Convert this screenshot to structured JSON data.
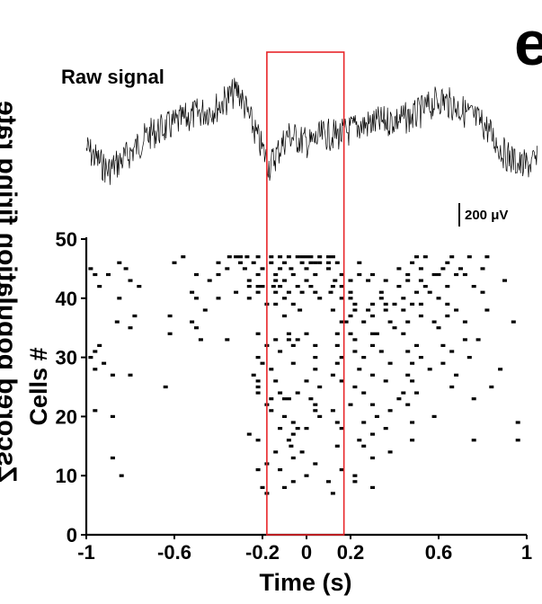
{
  "panel_letter": "e",
  "side_label": "Zscored population firing rate",
  "chart_data": {
    "type": "scatter",
    "subtype": "raster",
    "raw_signal_label": "Raw signal",
    "scale_bar_label": "200 μV",
    "xlabel": "Time (s)",
    "ylabel": "Cells #",
    "xlim": [
      -1,
      1
    ],
    "ylim": [
      0,
      50
    ],
    "x_ticks": [
      -1,
      -0.6,
      -0.2,
      0,
      0.2,
      0.6,
      1
    ],
    "x_tick_labels": [
      "-1",
      "-0.6",
      "-0.2",
      "0",
      "0.2",
      "0.6",
      "1"
    ],
    "y_ticks": [
      0,
      10,
      20,
      30,
      40,
      50
    ],
    "y_tick_labels": [
      "0",
      "10",
      "20",
      "30",
      "40",
      "50"
    ],
    "highlight_window": [
      -0.18,
      0.17
    ],
    "highlight_color": "#e8262a",
    "spike_color": "#000000",
    "spikes": [
      [
        -0.02,
        47
      ],
      [
        -0.04,
        47
      ],
      [
        0.06,
        47
      ],
      [
        0.1,
        47
      ],
      [
        -0.27,
        47
      ],
      [
        -0.22,
        47
      ],
      [
        -0.3,
        47
      ],
      [
        -0.16,
        47
      ],
      [
        -0.12,
        47
      ],
      [
        0.02,
        47
      ],
      [
        0.12,
        47
      ],
      [
        0.0,
        47
      ],
      [
        0.5,
        47
      ],
      [
        -0.56,
        47
      ],
      [
        -0.08,
        47
      ],
      [
        -0.32,
        47
      ],
      [
        0.54,
        47
      ],
      [
        0.66,
        47
      ],
      [
        0.74,
        47
      ],
      [
        -0.35,
        47
      ],
      [
        0.82,
        47
      ],
      [
        -0.02,
        46
      ],
      [
        0.06,
        46
      ],
      [
        -0.24,
        46
      ],
      [
        -0.16,
        46
      ],
      [
        0.14,
        46
      ],
      [
        -0.3,
        46
      ],
      [
        -0.4,
        46
      ],
      [
        -0.85,
        46
      ],
      [
        0.02,
        46
      ],
      [
        0.1,
        46
      ],
      [
        -0.6,
        46
      ],
      [
        -0.1,
        46
      ],
      [
        0.04,
        46
      ],
      [
        0.64,
        46
      ],
      [
        0.48,
        46
      ],
      [
        0.24,
        46
      ],
      [
        -0.82,
        45
      ],
      [
        -0.12,
        45
      ],
      [
        -0.28,
        45
      ],
      [
        0.0,
        45
      ],
      [
        0.1,
        45
      ],
      [
        -0.36,
        45
      ],
      [
        0.42,
        45
      ],
      [
        -0.98,
        45
      ],
      [
        0.62,
        45
      ],
      [
        0.8,
        45
      ],
      [
        -0.2,
        45
      ],
      [
        0.52,
        45
      ],
      [
        0.7,
        45
      ],
      [
        -0.07,
        45
      ],
      [
        -0.9,
        44
      ],
      [
        -0.22,
        44
      ],
      [
        -0.4,
        44
      ],
      [
        0.24,
        44
      ],
      [
        -0.06,
        44
      ],
      [
        0.58,
        44
      ],
      [
        0.6,
        44
      ],
      [
        -0.14,
        44
      ],
      [
        0.16,
        44
      ],
      [
        0.04,
        44
      ],
      [
        0.3,
        44
      ],
      [
        0.46,
        44
      ],
      [
        0.68,
        44
      ],
      [
        -0.5,
        44
      ],
      [
        0.72,
        44
      ],
      [
        -0.96,
        44
      ],
      [
        -0.8,
        43
      ],
      [
        -0.44,
        43
      ],
      [
        0.13,
        43
      ],
      [
        0.46,
        43
      ],
      [
        0.52,
        43
      ],
      [
        0.0,
        43
      ],
      [
        -0.1,
        43
      ],
      [
        -0.14,
        43
      ],
      [
        0.28,
        43
      ],
      [
        0.36,
        43
      ],
      [
        -0.26,
        43
      ],
      [
        0.9,
        43
      ],
      [
        0.2,
        43
      ],
      [
        -0.22,
        42
      ],
      [
        -0.12,
        42
      ],
      [
        -0.04,
        42
      ],
      [
        0.12,
        42
      ],
      [
        -0.26,
        42
      ],
      [
        0.54,
        42
      ],
      [
        -0.76,
        42
      ],
      [
        0.64,
        42
      ],
      [
        -0.2,
        42
      ],
      [
        0.02,
        42
      ],
      [
        -0.15,
        42
      ],
      [
        0.16,
        42
      ],
      [
        0.42,
        42
      ],
      [
        -0.94,
        42
      ],
      [
        0.76,
        42
      ],
      [
        -0.22,
        41
      ],
      [
        0.04,
        41
      ],
      [
        -0.02,
        41
      ],
      [
        0.11,
        41
      ],
      [
        -0.52,
        41
      ],
      [
        0.56,
        41
      ],
      [
        -0.32,
        41
      ],
      [
        -0.14,
        41
      ],
      [
        0.2,
        41
      ],
      [
        0.8,
        41
      ],
      [
        -0.08,
        41
      ],
      [
        0.5,
        41
      ],
      [
        0.34,
        41
      ],
      [
        -0.1,
        40
      ],
      [
        -0.4,
        40
      ],
      [
        0.34,
        40
      ],
      [
        0.06,
        40
      ],
      [
        -0.26,
        40
      ],
      [
        -0.5,
        40
      ],
      [
        0.6,
        40
      ],
      [
        0.16,
        40
      ],
      [
        -0.85,
        40
      ],
      [
        0.44,
        40
      ],
      [
        0.2,
        40
      ],
      [
        0.3,
        39
      ],
      [
        0.36,
        39
      ],
      [
        0.4,
        39
      ],
      [
        0.48,
        39
      ],
      [
        -0.06,
        39
      ],
      [
        0.22,
        39
      ],
      [
        0.52,
        39
      ],
      [
        -0.14,
        39
      ],
      [
        -0.18,
        39
      ],
      [
        0.64,
        39
      ],
      [
        0.22,
        38
      ],
      [
        0.36,
        38
      ],
      [
        -0.46,
        38
      ],
      [
        0.12,
        38
      ],
      [
        0.68,
        38
      ],
      [
        0.82,
        38
      ],
      [
        0.28,
        38
      ],
      [
        -0.03,
        38
      ],
      [
        0.44,
        38
      ],
      [
        -0.78,
        37
      ],
      [
        0.2,
        37
      ],
      [
        -0.62,
        37
      ],
      [
        0.3,
        37
      ],
      [
        0.64,
        37
      ],
      [
        0.52,
        37
      ],
      [
        -0.1,
        37
      ],
      [
        -0.86,
        36
      ],
      [
        0.16,
        36
      ],
      [
        0.38,
        36
      ],
      [
        0.46,
        36
      ],
      [
        -0.52,
        36
      ],
      [
        0.18,
        36
      ],
      [
        0.26,
        36
      ],
      [
        0.94,
        36
      ],
      [
        0.72,
        36
      ],
      [
        0.58,
        36
      ],
      [
        -0.8,
        35
      ],
      [
        0.4,
        35
      ],
      [
        -0.5,
        35
      ],
      [
        0.6,
        35
      ],
      [
        -0.08,
        34
      ],
      [
        -0.62,
        34
      ],
      [
        0.14,
        34
      ],
      [
        0.3,
        34
      ],
      [
        0.0,
        34
      ],
      [
        -0.22,
        34
      ],
      [
        0.44,
        34
      ],
      [
        0.32,
        34
      ],
      [
        0.2,
        34
      ],
      [
        -0.36,
        33
      ],
      [
        -0.08,
        33
      ],
      [
        0.22,
        33
      ],
      [
        0.78,
        33
      ],
      [
        -0.48,
        33
      ],
      [
        -0.04,
        33
      ],
      [
        0.72,
        33
      ],
      [
        -0.14,
        33
      ],
      [
        -0.94,
        32
      ],
      [
        -0.06,
        32
      ],
      [
        0.3,
        32
      ],
      [
        0.5,
        32
      ],
      [
        -0.18,
        32
      ],
      [
        0.04,
        32
      ],
      [
        0.62,
        32
      ],
      [
        0.14,
        32
      ],
      [
        -0.96,
        31
      ],
      [
        0.22,
        31
      ],
      [
        0.46,
        31
      ],
      [
        -0.12,
        31
      ],
      [
        0.66,
        31
      ],
      [
        0.34,
        31
      ],
      [
        -0.98,
        30
      ],
      [
        0.16,
        30
      ],
      [
        0.52,
        30
      ],
      [
        0.04,
        30
      ],
      [
        0.26,
        30
      ],
      [
        0.74,
        30
      ],
      [
        -0.22,
        30
      ],
      [
        -0.92,
        29
      ],
      [
        -0.2,
        29
      ],
      [
        0.48,
        29
      ],
      [
        0.14,
        29
      ],
      [
        0.62,
        29
      ],
      [
        -0.06,
        29
      ],
      [
        0.38,
        29
      ],
      [
        -0.96,
        28
      ],
      [
        0.56,
        28
      ],
      [
        0.04,
        28
      ],
      [
        0.24,
        28
      ],
      [
        -0.16,
        28
      ],
      [
        0.88,
        28
      ],
      [
        -0.88,
        27
      ],
      [
        -0.8,
        27
      ],
      [
        0.12,
        27
      ],
      [
        -0.24,
        27
      ],
      [
        0.68,
        27
      ],
      [
        0.46,
        27
      ],
      [
        0.3,
        27
      ],
      [
        -0.14,
        26
      ],
      [
        0.16,
        26
      ],
      [
        0.36,
        26
      ],
      [
        0.48,
        26
      ],
      [
        -0.22,
        26
      ],
      [
        0.0,
        26
      ],
      [
        0.06,
        25
      ],
      [
        -0.64,
        25
      ],
      [
        0.22,
        25
      ],
      [
        -0.22,
        25
      ],
      [
        0.66,
        25
      ],
      [
        0.84,
        25
      ],
      [
        -0.12,
        24
      ],
      [
        0.5,
        24
      ],
      [
        -0.22,
        24
      ],
      [
        -0.04,
        24
      ],
      [
        0.26,
        24
      ],
      [
        0.44,
        24
      ],
      [
        -0.1,
        23
      ],
      [
        -0.08,
        23
      ],
      [
        0.02,
        23
      ],
      [
        -0.16,
        23
      ],
      [
        0.42,
        23
      ],
      [
        0.76,
        23
      ],
      [
        0.04,
        22
      ],
      [
        -0.18,
        22
      ],
      [
        0.46,
        22
      ],
      [
        0.2,
        22
      ],
      [
        0.3,
        22
      ],
      [
        -0.96,
        21
      ],
      [
        0.12,
        21
      ],
      [
        -0.16,
        21
      ],
      [
        0.38,
        21
      ],
      [
        0.04,
        21
      ],
      [
        -0.88,
        20
      ],
      [
        0.06,
        20
      ],
      [
        0.32,
        20
      ],
      [
        0.58,
        20
      ],
      [
        -0.1,
        20
      ],
      [
        0.96,
        19
      ],
      [
        0.26,
        19
      ],
      [
        0.14,
        19
      ],
      [
        -0.06,
        19
      ],
      [
        0.48,
        19
      ],
      [
        -0.12,
        18
      ],
      [
        0.16,
        18
      ],
      [
        0.0,
        18
      ],
      [
        0.36,
        18
      ],
      [
        -0.04,
        18
      ],
      [
        -0.26,
        17
      ],
      [
        -0.06,
        17
      ],
      [
        0.3,
        17
      ],
      [
        0.76,
        16
      ],
      [
        -0.22,
        16
      ],
      [
        0.48,
        16
      ],
      [
        0.96,
        16
      ],
      [
        0.24,
        16
      ],
      [
        -0.08,
        16
      ],
      [
        -0.07,
        15
      ],
      [
        0.14,
        15
      ],
      [
        0.26,
        15
      ],
      [
        -0.02,
        14
      ],
      [
        -0.14,
        14
      ],
      [
        0.38,
        14
      ],
      [
        -0.06,
        13
      ],
      [
        -0.88,
        13
      ],
      [
        0.3,
        13
      ],
      [
        -0.18,
        12
      ],
      [
        0.04,
        12
      ],
      [
        0.16,
        11
      ],
      [
        -0.22,
        11
      ],
      [
        -0.12,
        11
      ],
      [
        -0.84,
        10
      ],
      [
        0.22,
        10
      ],
      [
        0.0,
        10
      ],
      [
        0.22,
        9
      ],
      [
        -0.06,
        9
      ],
      [
        0.1,
        9
      ],
      [
        -0.2,
        8
      ],
      [
        0.3,
        8
      ],
      [
        -0.1,
        8
      ],
      [
        -0.18,
        7
      ],
      [
        0.12,
        7
      ]
    ]
  }
}
